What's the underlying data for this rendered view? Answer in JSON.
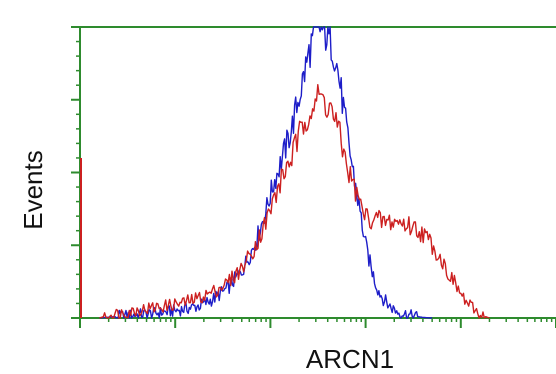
{
  "chart_data": {
    "type": "area",
    "title": "",
    "xlabel": "ARCN1",
    "ylabel": "Events",
    "x_scale": "log",
    "xlim": [
      1,
      100000
    ],
    "ylim": [
      0,
      100
    ],
    "grid": false,
    "legend": "none",
    "frame_color": "#2e8b2e",
    "series": [
      {
        "color": "#1d1dc8",
        "points": [
          [
            1.6,
            0.0
          ],
          [
            2.0,
            0.3
          ],
          [
            3.0,
            0.8
          ],
          [
            5.0,
            1.4
          ],
          [
            8.0,
            2.0
          ],
          [
            12.0,
            3.0
          ],
          [
            18.0,
            4.2
          ],
          [
            25.0,
            6.5
          ],
          [
            35.0,
            10.0
          ],
          [
            50.0,
            16.0
          ],
          [
            70.0,
            26.0
          ],
          [
            90.0,
            37.0
          ],
          [
            110.0,
            47.0
          ],
          [
            140.0,
            57.0
          ],
          [
            170.0,
            66.0
          ],
          [
            210.0,
            79.0
          ],
          [
            250.0,
            90.0
          ],
          [
            290.0,
            98.0
          ],
          [
            330.0,
            100.0
          ],
          [
            380.0,
            97.5
          ],
          [
            430.0,
            95.0
          ],
          [
            480.0,
            90.0
          ],
          [
            540.0,
            80.0
          ],
          [
            610.0,
            68.0
          ],
          [
            700.0,
            55.0
          ],
          [
            800.0,
            44.0
          ],
          [
            900.0,
            34.0
          ],
          [
            1000.0,
            25.0
          ],
          [
            1150.0,
            17.0
          ],
          [
            1300.0,
            11.0
          ],
          [
            1500.0,
            7.0
          ],
          [
            1800.0,
            4.0
          ],
          [
            2200.0,
            2.0
          ],
          [
            3000.0,
            0.8
          ],
          [
            4000.0,
            0.2
          ],
          [
            5000.0,
            0.0
          ]
        ]
      },
      {
        "color": "#cc2020",
        "points": [
          [
            1.6,
            0.0
          ],
          [
            2.0,
            1.0
          ],
          [
            3.0,
            2.0
          ],
          [
            5.0,
            3.2
          ],
          [
            8.0,
            4.2
          ],
          [
            12.0,
            5.2
          ],
          [
            18.0,
            7.0
          ],
          [
            25.0,
            9.0
          ],
          [
            35.0,
            12.0
          ],
          [
            50.0,
            17.0
          ],
          [
            70.0,
            25.0
          ],
          [
            90.0,
            33.0
          ],
          [
            110.0,
            41.0
          ],
          [
            140.0,
            50.0
          ],
          [
            170.0,
            56.0
          ],
          [
            210.0,
            64.0
          ],
          [
            250.0,
            71.0
          ],
          [
            290.0,
            74.0
          ],
          [
            330.0,
            76.0
          ],
          [
            380.0,
            74.0
          ],
          [
            430.0,
            72.0
          ],
          [
            480.0,
            68.0
          ],
          [
            540.0,
            62.0
          ],
          [
            610.0,
            55.0
          ],
          [
            700.0,
            48.0
          ],
          [
            800.0,
            43.0
          ],
          [
            900.0,
            38.0
          ],
          [
            1000.0,
            35.0
          ],
          [
            1150.0,
            34.0
          ],
          [
            1300.0,
            34.0
          ],
          [
            1500.0,
            33.0
          ],
          [
            1800.0,
            33.0
          ],
          [
            2200.0,
            33.0
          ],
          [
            2700.0,
            32.0
          ],
          [
            3300.0,
            31.0
          ],
          [
            4000.0,
            29.0
          ],
          [
            4800.0,
            26.0
          ],
          [
            5500.0,
            23.0
          ],
          [
            6500.0,
            19.0
          ],
          [
            7500.0,
            15.0
          ],
          [
            9000.0,
            11.0
          ],
          [
            10500.0,
            7.0
          ],
          [
            12500.0,
            4.0
          ],
          [
            15000.0,
            2.0
          ],
          [
            18000.0,
            0.5
          ],
          [
            20000.0,
            0.0
          ]
        ]
      }
    ]
  }
}
